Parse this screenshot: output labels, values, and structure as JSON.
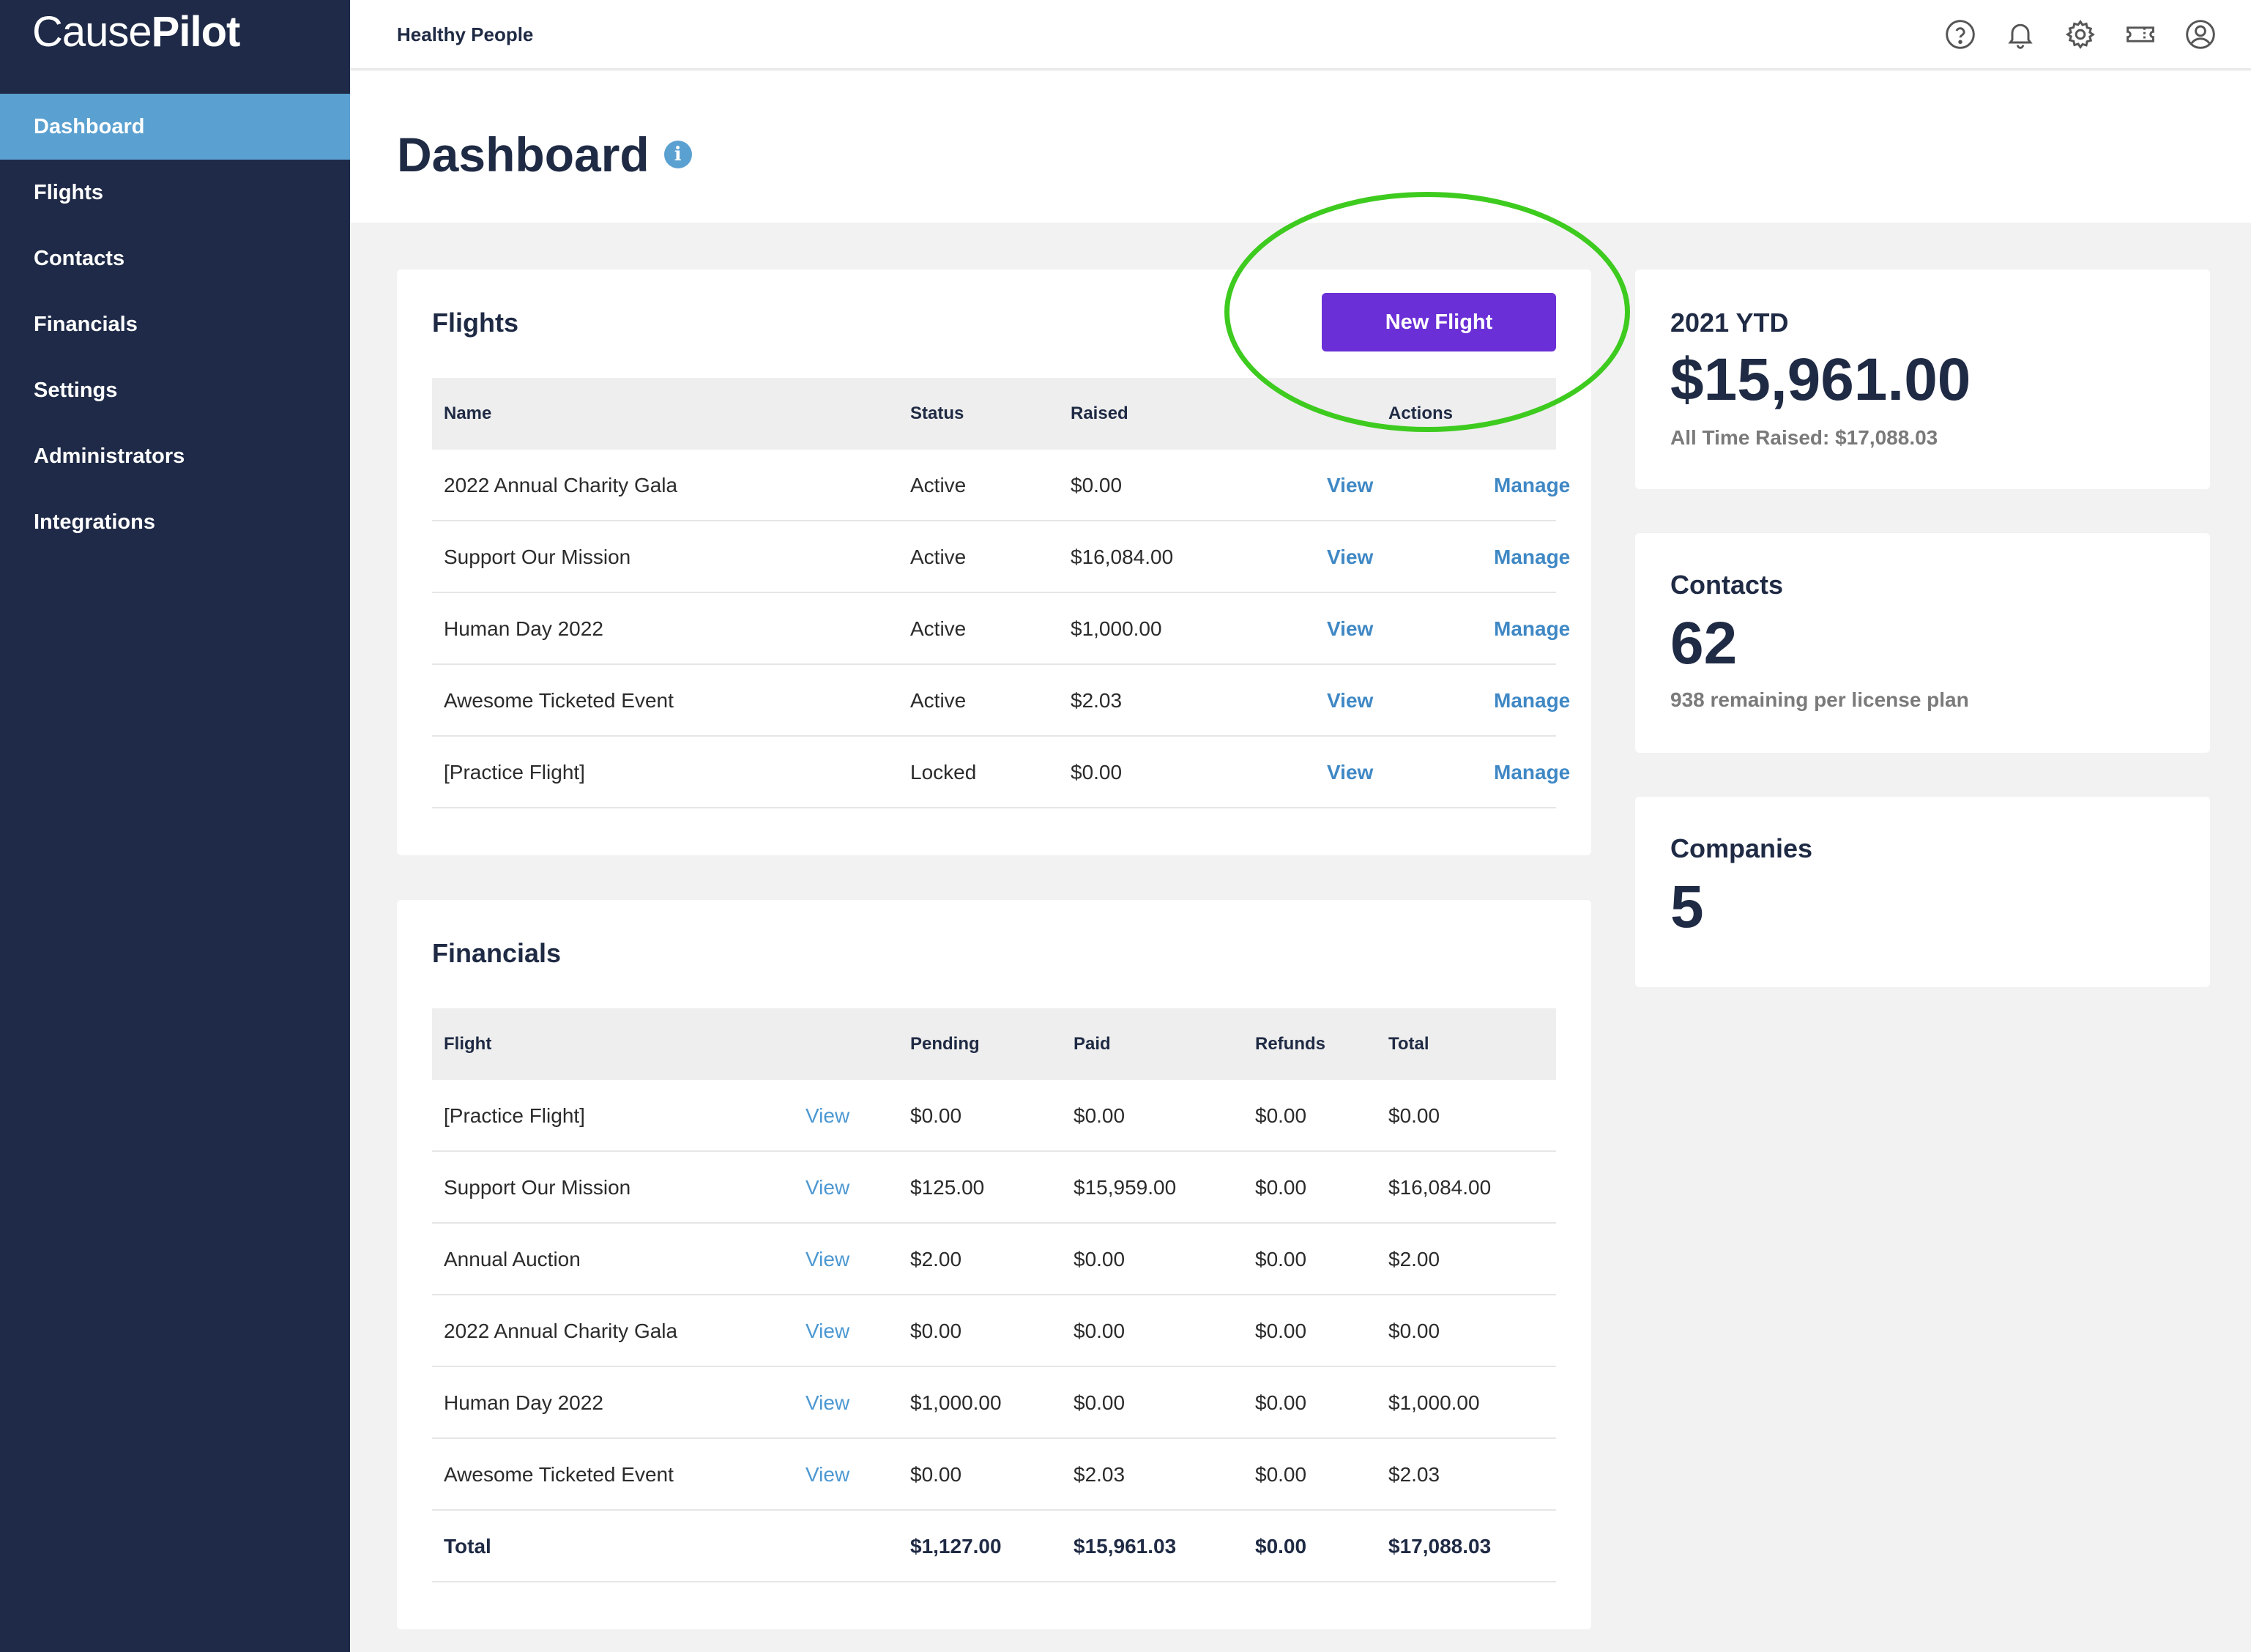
{
  "brand": {
    "light": "Cause",
    "bold": "Pilot"
  },
  "sidebar": {
    "items": [
      {
        "label": "Dashboard",
        "active": true
      },
      {
        "label": "Flights"
      },
      {
        "label": "Contacts"
      },
      {
        "label": "Financials"
      },
      {
        "label": "Settings"
      },
      {
        "label": "Administrators"
      },
      {
        "label": "Integrations"
      }
    ]
  },
  "topbar": {
    "org_name": "Healthy People",
    "icons": [
      "help-icon",
      "bell-icon",
      "gear-icon",
      "ticket-icon",
      "user-icon"
    ]
  },
  "page": {
    "title": "Dashboard",
    "info_icon": "i"
  },
  "flights": {
    "title": "Flights",
    "new_button": "New Flight",
    "columns": {
      "name": "Name",
      "status": "Status",
      "raised": "Raised",
      "actions": "Actions"
    },
    "rows": [
      {
        "name": "2022 Annual Charity Gala",
        "status": "Active",
        "raised": "$0.00",
        "view": "View",
        "manage": "Manage"
      },
      {
        "name": "Support Our Mission",
        "status": "Active",
        "raised": "$16,084.00",
        "view": "View",
        "manage": "Manage"
      },
      {
        "name": "Human Day 2022",
        "status": "Active",
        "raised": "$1,000.00",
        "view": "View",
        "manage": "Manage"
      },
      {
        "name": "Awesome Ticketed Event",
        "status": "Active",
        "raised": "$2.03",
        "view": "View",
        "manage": "Manage"
      },
      {
        "name": "[Practice Flight]",
        "status": "Locked",
        "raised": "$0.00",
        "view": "View",
        "manage": "Manage"
      }
    ]
  },
  "financials": {
    "title": "Financials",
    "columns": {
      "flight": "Flight",
      "pending": "Pending",
      "paid": "Paid",
      "refunds": "Refunds",
      "total": "Total"
    },
    "rows": [
      {
        "flight": "[Practice Flight]",
        "view": "View",
        "pending": "$0.00",
        "paid": "$0.00",
        "refunds": "$0.00",
        "total": "$0.00"
      },
      {
        "flight": "Support Our Mission",
        "view": "View",
        "pending": "$125.00",
        "paid": "$15,959.00",
        "refunds": "$0.00",
        "total": "$16,084.00"
      },
      {
        "flight": "Annual Auction",
        "view": "View",
        "pending": "$2.00",
        "paid": "$0.00",
        "refunds": "$0.00",
        "total": "$2.00"
      },
      {
        "flight": "2022 Annual Charity Gala",
        "view": "View",
        "pending": "$0.00",
        "paid": "$0.00",
        "refunds": "$0.00",
        "total": "$0.00"
      },
      {
        "flight": "Human Day 2022",
        "view": "View",
        "pending": "$1,000.00",
        "paid": "$0.00",
        "refunds": "$0.00",
        "total": "$1,000.00"
      },
      {
        "flight": "Awesome Ticketed Event",
        "view": "View",
        "pending": "$0.00",
        "paid": "$2.03",
        "refunds": "$0.00",
        "total": "$2.03"
      }
    ],
    "total_row": {
      "label": "Total",
      "pending": "$1,127.00",
      "paid": "$15,961.03",
      "refunds": "$0.00",
      "total": "$17,088.03"
    }
  },
  "stats": {
    "ytd": {
      "label": "2021 YTD",
      "value": "$15,961.00",
      "sub": "All Time Raised: $17,088.03"
    },
    "contacts": {
      "label": "Contacts",
      "value": "62",
      "sub": "938 remaining per license plan"
    },
    "companies": {
      "label": "Companies",
      "value": "5"
    }
  },
  "colors": {
    "sidebar": "#1e2a47",
    "active_nav": "#5aa0d0",
    "primary_button": "#6a2fd6",
    "link": "#3f88c5",
    "highlight": "#3ecb1f"
  }
}
